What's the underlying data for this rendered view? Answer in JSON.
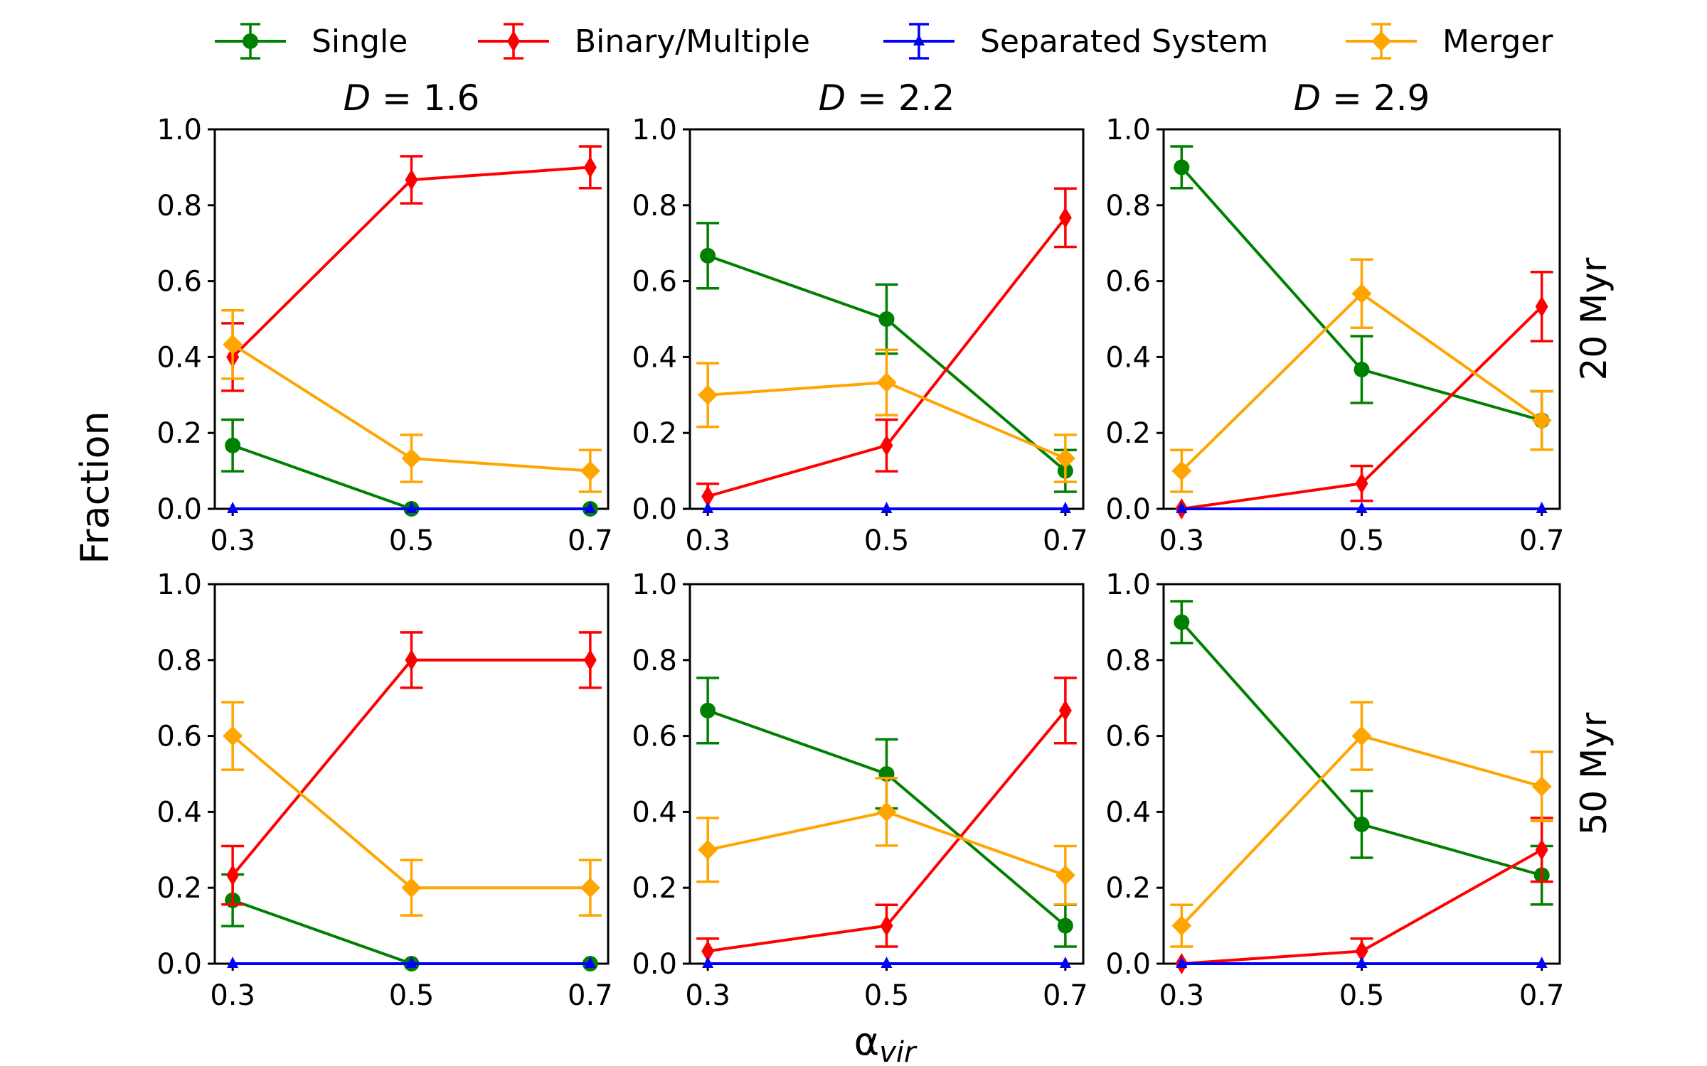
{
  "chart_data": {
    "type": "line",
    "xlabel_main": "α",
    "xlabel_sub": "vir",
    "ylabel": "Fraction",
    "xticks": [
      0.3,
      0.5,
      0.7
    ],
    "xtick_labels": [
      "0.3",
      "0.5",
      "0.7"
    ],
    "yticks": [
      0.0,
      0.2,
      0.4,
      0.6,
      0.8,
      1.0
    ],
    "ytick_labels": [
      "0.0",
      "0.2",
      "0.4",
      "0.6",
      "0.8",
      "1.0"
    ],
    "xlim": [
      0.28,
      0.72
    ],
    "ylim": [
      0,
      1
    ],
    "grid": false,
    "legend_position": "top",
    "legend": [
      {
        "name": "Single",
        "color": "#008000",
        "marker": "circle"
      },
      {
        "name": "Binary/Multiple",
        "color": "#ff0000",
        "marker": "thin-diamond"
      },
      {
        "name": "Separated System",
        "color": "#0000ff",
        "marker": "triangle"
      },
      {
        "name": "Merger",
        "color": "#ffa500",
        "marker": "diamond"
      }
    ],
    "columns": [
      {
        "title_var": "D",
        "title_eq": " = ",
        "title_val": "1.6"
      },
      {
        "title_var": "D",
        "title_eq": " = ",
        "title_val": "2.2"
      },
      {
        "title_var": "D",
        "title_eq": " = ",
        "title_val": "2.9"
      }
    ],
    "rows": [
      {
        "label": "20 Myr"
      },
      {
        "label": "50 Myr"
      }
    ],
    "panels": [
      {
        "row": 0,
        "col": 0,
        "x": [
          0.3,
          0.5,
          0.7
        ],
        "series": [
          {
            "name": "Single",
            "values": [
              0.167,
              0.0,
              0.0
            ],
            "errors": [
              0.068,
              0.0,
              0.0
            ]
          },
          {
            "name": "Binary/Multiple",
            "values": [
              0.4,
              0.867,
              0.9
            ],
            "errors": [
              0.089,
              0.062,
              0.055
            ]
          },
          {
            "name": "Separated System",
            "values": [
              0.0,
              0.0,
              0.0
            ],
            "errors": [
              0.0,
              0.0,
              0.0
            ]
          },
          {
            "name": "Merger",
            "values": [
              0.433,
              0.133,
              0.1
            ],
            "errors": [
              0.09,
              0.062,
              0.055
            ]
          }
        ]
      },
      {
        "row": 0,
        "col": 1,
        "x": [
          0.3,
          0.5,
          0.7
        ],
        "series": [
          {
            "name": "Single",
            "values": [
              0.667,
              0.5,
              0.1
            ],
            "errors": [
              0.086,
              0.091,
              0.055
            ]
          },
          {
            "name": "Binary/Multiple",
            "values": [
              0.033,
              0.167,
              0.767
            ],
            "errors": [
              0.033,
              0.068,
              0.077
            ]
          },
          {
            "name": "Separated System",
            "values": [
              0.0,
              0.0,
              0.0
            ],
            "errors": [
              0.0,
              0.0,
              0.0
            ]
          },
          {
            "name": "Merger",
            "values": [
              0.3,
              0.333,
              0.133
            ],
            "errors": [
              0.084,
              0.086,
              0.062
            ]
          }
        ]
      },
      {
        "row": 0,
        "col": 2,
        "x": [
          0.3,
          0.5,
          0.7
        ],
        "series": [
          {
            "name": "Single",
            "values": [
              0.9,
              0.367,
              0.233
            ],
            "errors": [
              0.055,
              0.088,
              0.077
            ]
          },
          {
            "name": "Binary/Multiple",
            "values": [
              0.0,
              0.067,
              0.533
            ],
            "errors": [
              0.0,
              0.046,
              0.091
            ]
          },
          {
            "name": "Separated System",
            "values": [
              0.0,
              0.0,
              0.0
            ],
            "errors": [
              0.0,
              0.0,
              0.0
            ]
          },
          {
            "name": "Merger",
            "values": [
              0.1,
              0.567,
              0.233
            ],
            "errors": [
              0.055,
              0.09,
              0.077
            ]
          }
        ]
      },
      {
        "row": 1,
        "col": 0,
        "x": [
          0.3,
          0.5,
          0.7
        ],
        "series": [
          {
            "name": "Single",
            "values": [
              0.167,
              0.0,
              0.0
            ],
            "errors": [
              0.068,
              0.0,
              0.0
            ]
          },
          {
            "name": "Binary/Multiple",
            "values": [
              0.233,
              0.8,
              0.8
            ],
            "errors": [
              0.077,
              0.073,
              0.073
            ]
          },
          {
            "name": "Separated System",
            "values": [
              0.0,
              0.0,
              0.0
            ],
            "errors": [
              0.0,
              0.0,
              0.0
            ]
          },
          {
            "name": "Merger",
            "values": [
              0.6,
              0.2,
              0.2
            ],
            "errors": [
              0.089,
              0.073,
              0.073
            ]
          }
        ]
      },
      {
        "row": 1,
        "col": 1,
        "x": [
          0.3,
          0.5,
          0.7
        ],
        "series": [
          {
            "name": "Single",
            "values": [
              0.667,
              0.5,
              0.1
            ],
            "errors": [
              0.086,
              0.091,
              0.055
            ]
          },
          {
            "name": "Binary/Multiple",
            "values": [
              0.033,
              0.1,
              0.667
            ],
            "errors": [
              0.033,
              0.055,
              0.086
            ]
          },
          {
            "name": "Separated System",
            "values": [
              0.0,
              0.0,
              0.0
            ],
            "errors": [
              0.0,
              0.0,
              0.0
            ]
          },
          {
            "name": "Merger",
            "values": [
              0.3,
              0.4,
              0.233
            ],
            "errors": [
              0.084,
              0.089,
              0.077
            ]
          }
        ]
      },
      {
        "row": 1,
        "col": 2,
        "x": [
          0.3,
          0.5,
          0.7
        ],
        "series": [
          {
            "name": "Single",
            "values": [
              0.9,
              0.367,
              0.233
            ],
            "errors": [
              0.055,
              0.088,
              0.077
            ]
          },
          {
            "name": "Binary/Multiple",
            "values": [
              0.0,
              0.033,
              0.3
            ],
            "errors": [
              0.0,
              0.033,
              0.084
            ]
          },
          {
            "name": "Separated System",
            "values": [
              0.0,
              0.0,
              0.0
            ],
            "errors": [
              0.0,
              0.0,
              0.0
            ]
          },
          {
            "name": "Merger",
            "values": [
              0.1,
              0.6,
              0.467
            ],
            "errors": [
              0.055,
              0.089,
              0.091
            ]
          }
        ]
      }
    ]
  }
}
